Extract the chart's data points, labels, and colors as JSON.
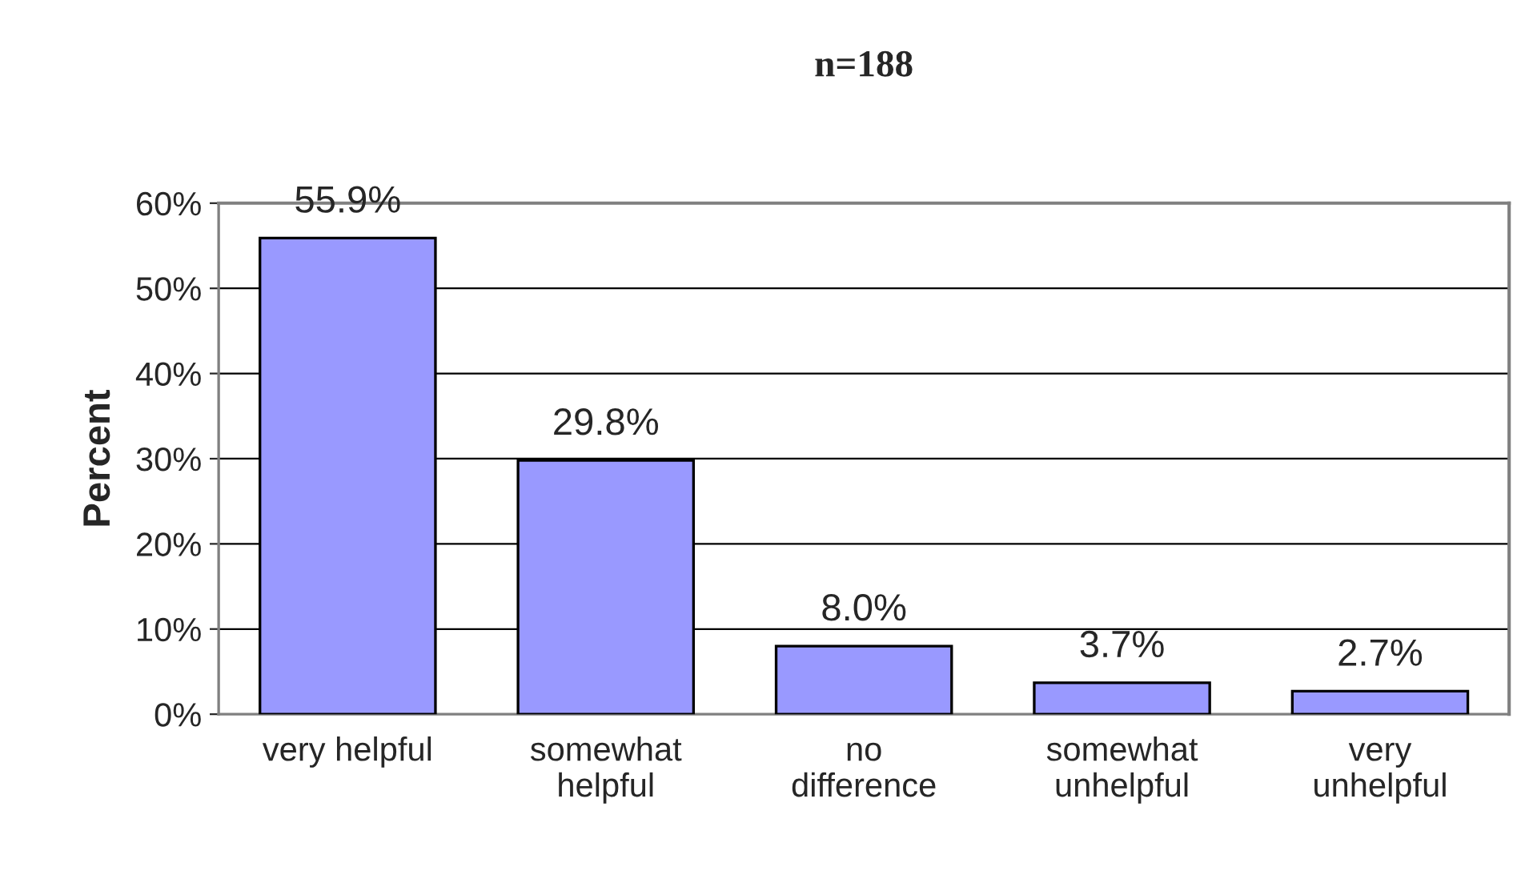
{
  "chart_data": {
    "type": "bar",
    "title": "n=188",
    "ylabel": "Percent",
    "categories": [
      "very helpful",
      "somewhat\nhelpful",
      "no\ndifference",
      "somewhat\nunhelpful",
      "very\nunhelpful"
    ],
    "values": [
      55.9,
      29.8,
      8.0,
      3.7,
      2.7
    ],
    "value_labels": [
      "55.9%",
      "29.8%",
      "8.0%",
      "3.7%",
      "2.7%"
    ],
    "color": "#9999ff",
    "ylim": [
      0,
      60
    ],
    "yticks": [
      {
        "value": 0,
        "label": "0%"
      },
      {
        "value": 10,
        "label": "10%"
      },
      {
        "value": 20,
        "label": "20%"
      },
      {
        "value": 30,
        "label": "30%"
      },
      {
        "value": 40,
        "label": "40%"
      },
      {
        "value": 50,
        "label": "50%"
      },
      {
        "value": 60,
        "label": "60%"
      }
    ],
    "grid": "y",
    "legend": false
  }
}
